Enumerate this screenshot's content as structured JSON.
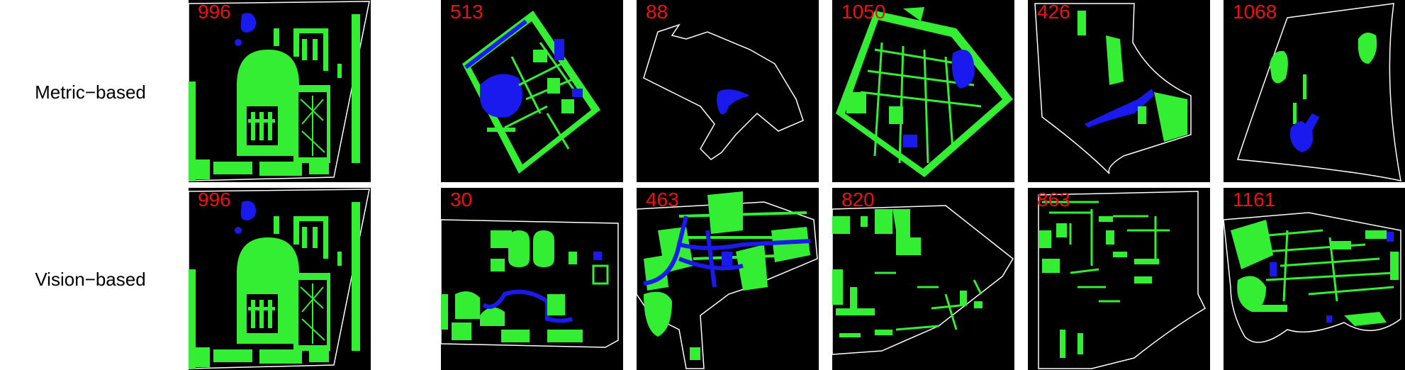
{
  "rows": [
    {
      "label": "Metric−based",
      "tiles": [
        {
          "number": "996",
          "map": "campus-a"
        },
        {
          "number": "513",
          "map": "campus-b"
        },
        {
          "number": "88",
          "map": "campus-c"
        },
        {
          "number": "1050",
          "map": "campus-d"
        },
        {
          "number": "426",
          "map": "campus-e"
        },
        {
          "number": "1068",
          "map": "campus-f"
        }
      ]
    },
    {
      "label": "Vision−based",
      "tiles": [
        {
          "number": "996",
          "map": "campus-a"
        },
        {
          "number": "30",
          "map": "campus-g"
        },
        {
          "number": "463",
          "map": "campus-h"
        },
        {
          "number": "820",
          "map": "campus-i"
        },
        {
          "number": "863",
          "map": "campus-j"
        },
        {
          "number": "1161",
          "map": "campus-k"
        }
      ]
    }
  ],
  "colors": {
    "tile_background": "#000000",
    "green_space": "#33ee33",
    "water": "#1a1aee",
    "boundary": "#ffffff",
    "number_text": "#ee1111"
  }
}
